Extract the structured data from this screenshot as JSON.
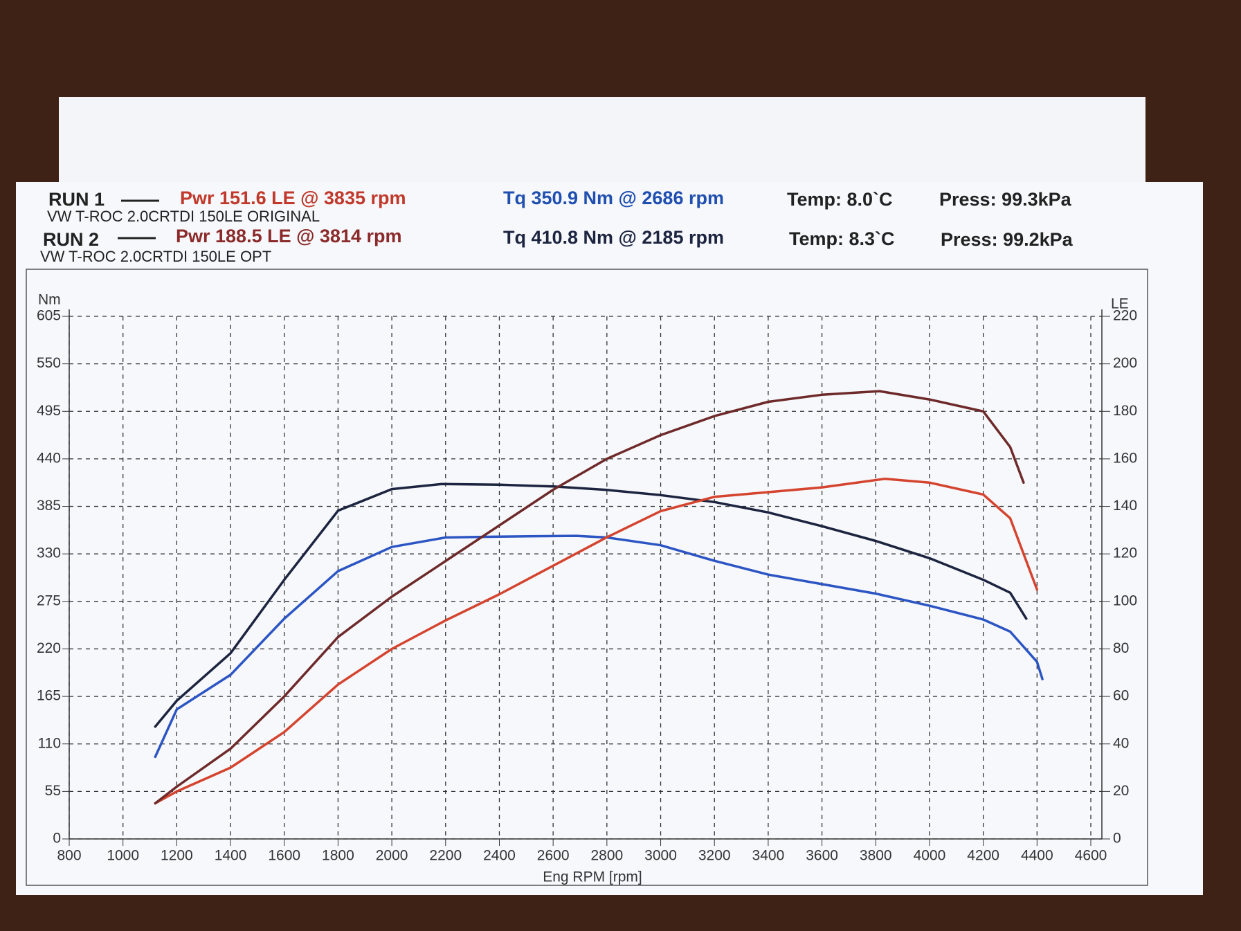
{
  "chart_data": {
    "type": "line",
    "runs": [
      {
        "label": "RUN 1",
        "power": "Pwr  151.6 LE @ 3835 rpm",
        "torque": "Tq 350.9 Nm @ 2686 rpm",
        "temp": "Temp: 8.0`C",
        "press": "Press: 99.3kPa",
        "description": "VW T-ROC 2.0CRTDI 150LE ORIGINAL"
      },
      {
        "label": "RUN 2",
        "power": "Pwr  188.5 LE @ 3814 rpm",
        "torque": "Tq 410.8 Nm @ 2185 rpm",
        "temp": "Temp: 8.3`C",
        "press": "Press: 99.2kPa",
        "description": "VW T-ROC 2.0CRTDI 150LE OPT"
      }
    ],
    "y_label": "Nm",
    "y2_label": "LE",
    "x_label": "Eng RPM [rpm]",
    "xlim": [
      800,
      4600
    ],
    "xticks": [
      800,
      1000,
      1200,
      1400,
      1600,
      1800,
      2000,
      2200,
      2400,
      2600,
      2800,
      3000,
      3200,
      3400,
      3600,
      3800,
      4000,
      4200,
      4400,
      4600
    ],
    "ylim": [
      0,
      605
    ],
    "yticks": [
      0,
      55,
      110,
      165,
      220,
      275,
      330,
      385,
      440,
      495,
      550,
      605
    ],
    "y2lim": [
      0,
      220
    ],
    "y2ticks": [
      0,
      20,
      40,
      60,
      80,
      100,
      120,
      140,
      160,
      180,
      200,
      220
    ],
    "grid": true,
    "series": [
      {
        "color": "#2c55c4",
        "axis": "y",
        "x": [
          1120,
          1200,
          1400,
          1600,
          1800,
          2000,
          2200,
          2400,
          2686,
          2800,
          3000,
          3200,
          3400,
          3600,
          3800,
          4000,
          4200,
          4300,
          4400,
          4420
        ],
        "values": [
          95,
          150,
          190,
          255,
          310,
          338,
          349,
          350,
          350.9,
          349,
          340,
          322,
          306,
          295,
          284,
          270,
          254,
          240,
          205,
          185
        ]
      },
      {
        "color": "#1c2440",
        "axis": "y",
        "x": [
          1120,
          1200,
          1400,
          1600,
          1800,
          2000,
          2185,
          2400,
          2600,
          2800,
          3000,
          3200,
          3400,
          3600,
          3800,
          4000,
          4200,
          4300,
          4360
        ],
        "values": [
          130,
          160,
          215,
          300,
          380,
          405,
          410.8,
          410,
          408,
          404,
          398,
          390,
          378,
          362,
          345,
          325,
          300,
          285,
          255
        ]
      },
      {
        "color": "#d4442f",
        "axis": "y2",
        "x": [
          1120,
          1200,
          1400,
          1600,
          1800,
          2000,
          2200,
          2400,
          2600,
          2800,
          3000,
          3200,
          3400,
          3600,
          3835,
          4000,
          4200,
          4300,
          4400
        ],
        "values": [
          15,
          20,
          30,
          45,
          65,
          80,
          92,
          103,
          115,
          127,
          138,
          144,
          146,
          148,
          151.6,
          150,
          145,
          135,
          105
        ]
      },
      {
        "color": "#6e2a2a",
        "axis": "y2",
        "x": [
          1120,
          1200,
          1400,
          1600,
          1800,
          2000,
          2200,
          2400,
          2600,
          2800,
          3000,
          3200,
          3400,
          3600,
          3814,
          4000,
          4200,
          4300,
          4350
        ],
        "values": [
          15,
          22,
          38,
          60,
          85,
          102,
          117,
          132,
          147,
          160,
          170,
          178,
          184,
          187,
          188.5,
          185,
          180,
          165,
          150
        ]
      }
    ]
  }
}
